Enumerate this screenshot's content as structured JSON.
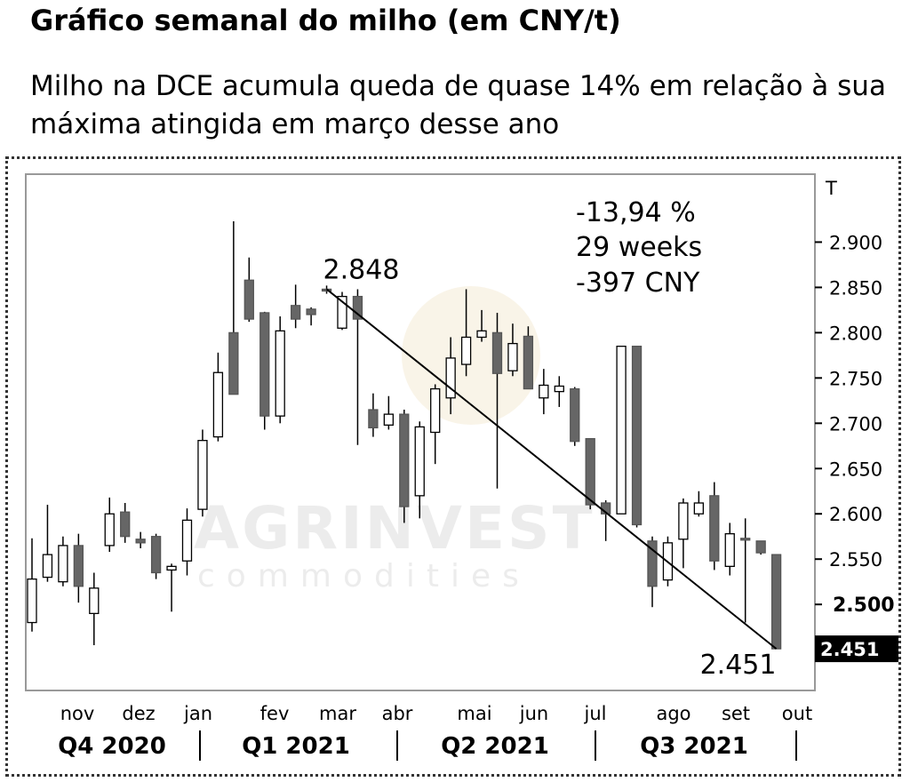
{
  "header": {
    "title": "Gráfico semanal do milho (em CNY/t)",
    "subtitle": "Milho na DCE acumula queda de quase 14% em relação à sua máxima atingida em março desse ano"
  },
  "watermark": {
    "name": "AGRINVEST",
    "tagline": "commodities"
  },
  "chart_data": {
    "type": "candlestick",
    "title": "",
    "ylabel": "T",
    "ylim": [
      2405,
      2975
    ],
    "yticks": [
      2550,
      2600,
      2650,
      2700,
      2750,
      2800,
      2850,
      2900
    ],
    "yticks_display": [
      "2.550",
      "2.600",
      "2.650",
      "2.700",
      "2.750",
      "2.800",
      "2.850",
      "2.900"
    ],
    "reference_level": {
      "value": 2500,
      "label": "2.500"
    },
    "last_price": {
      "value": 2451,
      "label": "2.451"
    },
    "months": [
      "nov",
      "dez",
      "jan",
      "fev",
      "mar",
      "abr",
      "mai",
      "jun",
      "jul",
      "ago",
      "set",
      "out"
    ],
    "quarters": [
      "Q4 2020",
      "Q1 2021",
      "Q2 2021",
      "Q3 2021"
    ],
    "candles": [
      {
        "o": 2480,
        "h": 2573,
        "l": 2470,
        "c": 2528
      },
      {
        "o": 2530,
        "h": 2610,
        "l": 2525,
        "c": 2555
      },
      {
        "o": 2525,
        "h": 2575,
        "l": 2520,
        "c": 2565
      },
      {
        "o": 2565,
        "h": 2578,
        "l": 2502,
        "c": 2520
      },
      {
        "o": 2490,
        "h": 2535,
        "l": 2455,
        "c": 2518
      },
      {
        "o": 2565,
        "h": 2618,
        "l": 2558,
        "c": 2600
      },
      {
        "o": 2602,
        "h": 2612,
        "l": 2568,
        "c": 2575
      },
      {
        "o": 2572,
        "h": 2580,
        "l": 2562,
        "c": 2568
      },
      {
        "o": 2575,
        "h": 2578,
        "l": 2528,
        "c": 2535
      },
      {
        "o": 2538,
        "h": 2545,
        "l": 2492,
        "c": 2542
      },
      {
        "o": 2548,
        "h": 2606,
        "l": 2532,
        "c": 2593
      },
      {
        "o": 2605,
        "h": 2693,
        "l": 2597,
        "c": 2681
      },
      {
        "o": 2685,
        "h": 2778,
        "l": 2680,
        "c": 2756
      },
      {
        "o": 2800,
        "h": 2923,
        "l": 2732,
        "c": 2732
      },
      {
        "o": 2858,
        "h": 2883,
        "l": 2812,
        "c": 2815
      },
      {
        "o": 2822,
        "h": 2823,
        "l": 2693,
        "c": 2708
      },
      {
        "o": 2708,
        "h": 2818,
        "l": 2700,
        "c": 2802
      },
      {
        "o": 2830,
        "h": 2853,
        "l": 2805,
        "c": 2815
      },
      {
        "o": 2826,
        "h": 2828,
        "l": 2808,
        "c": 2820
      },
      {
        "o": 2848,
        "h": 2852,
        "l": 2843,
        "c": 2848
      },
      {
        "o": 2805,
        "h": 2845,
        "l": 2803,
        "c": 2840
      },
      {
        "o": 2840,
        "h": 2848,
        "l": 2676,
        "c": 2815
      },
      {
        "o": 2715,
        "h": 2733,
        "l": 2685,
        "c": 2695
      },
      {
        "o": 2698,
        "h": 2730,
        "l": 2693,
        "c": 2710
      },
      {
        "o": 2710,
        "h": 2715,
        "l": 2590,
        "c": 2608
      },
      {
        "o": 2620,
        "h": 2702,
        "l": 2595,
        "c": 2696
      },
      {
        "o": 2690,
        "h": 2743,
        "l": 2655,
        "c": 2738
      },
      {
        "o": 2728,
        "h": 2795,
        "l": 2710,
        "c": 2772
      },
      {
        "o": 2765,
        "h": 2848,
        "l": 2752,
        "c": 2795
      },
      {
        "o": 2795,
        "h": 2825,
        "l": 2790,
        "c": 2802
      },
      {
        "o": 2800,
        "h": 2822,
        "l": 2628,
        "c": 2755
      },
      {
        "o": 2758,
        "h": 2810,
        "l": 2752,
        "c": 2788
      },
      {
        "o": 2796,
        "h": 2807,
        "l": 2738,
        "c": 2738
      },
      {
        "o": 2728,
        "h": 2760,
        "l": 2710,
        "c": 2742
      },
      {
        "o": 2735,
        "h": 2752,
        "l": 2718,
        "c": 2741
      },
      {
        "o": 2738,
        "h": 2740,
        "l": 2675,
        "c": 2680
      },
      {
        "o": 2683,
        "h": 2683,
        "l": 2605,
        "c": 2610
      },
      {
        "o": 2612,
        "h": 2615,
        "l": 2570,
        "c": 2600
      },
      {
        "o": 2600,
        "h": 2785,
        "l": 2600,
        "c": 2785
      },
      {
        "o": 2785,
        "h": 2785,
        "l": 2585,
        "c": 2588
      },
      {
        "o": 2570,
        "h": 2575,
        "l": 2497,
        "c": 2520
      },
      {
        "o": 2527,
        "h": 2575,
        "l": 2520,
        "c": 2568
      },
      {
        "o": 2572,
        "h": 2617,
        "l": 2540,
        "c": 2612
      },
      {
        "o": 2600,
        "h": 2625,
        "l": 2597,
        "c": 2612
      },
      {
        "o": 2620,
        "h": 2635,
        "l": 2538,
        "c": 2548
      },
      {
        "o": 2542,
        "h": 2590,
        "l": 2532,
        "c": 2578
      },
      {
        "o": 2573,
        "h": 2595,
        "l": 2480,
        "c": 2573
      },
      {
        "o": 2570,
        "h": 2570,
        "l": 2555,
        "c": 2557
      },
      {
        "o": 2555,
        "h": 2555,
        "l": 2451,
        "c": 2451
      }
    ],
    "annotations": {
      "high_label": "2.848",
      "low_label": "2.451",
      "stats": [
        "-13,94 %",
        "29 weeks",
        "-397 CNY"
      ],
      "trendline": {
        "from": 2848,
        "to": 2451
      }
    }
  }
}
